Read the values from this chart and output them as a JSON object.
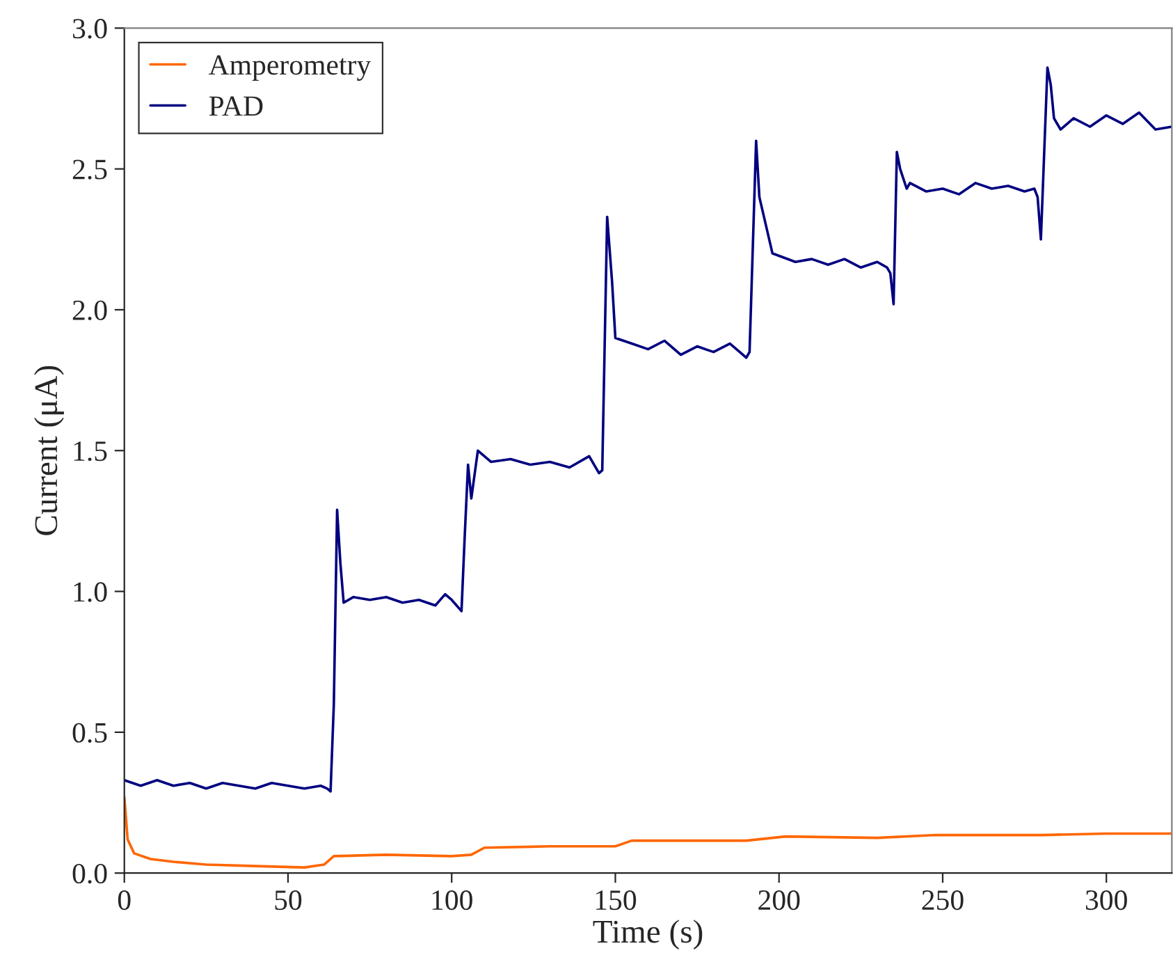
{
  "chart_data": {
    "type": "line",
    "xlabel": "Time (s)",
    "ylabel": "Current (μA)",
    "xlim": [
      0,
      320
    ],
    "xticks": [
      0,
      50,
      100,
      150,
      200,
      250,
      300
    ],
    "ylim": [
      0,
      3.0
    ],
    "yticks": [
      {
        "value": 0,
        "label": "0.0"
      },
      {
        "value": 0.5,
        "label": "0.5"
      },
      {
        "value": 1.0,
        "label": "1.0"
      },
      {
        "value": 1.5,
        "label": "1.5"
      },
      {
        "value": 2.0,
        "label": "2.0"
      },
      {
        "value": 2.5,
        "label": "2.5"
      },
      {
        "value": 3.0,
        "label": "3.0"
      }
    ],
    "grid": false,
    "legend": "top left",
    "marker": "none",
    "line_style": "solid",
    "series": [
      {
        "name": "Amperometry",
        "color": "#ff6600",
        "x": [
          0,
          1,
          3,
          8,
          15,
          25,
          40,
          55,
          61,
          64,
          80,
          100,
          106,
          110,
          130,
          150,
          155,
          190,
          202,
          230,
          248,
          280,
          300,
          320
        ],
        "values": [
          0.27,
          0.12,
          0.07,
          0.05,
          0.04,
          0.03,
          0.025,
          0.02,
          0.03,
          0.06,
          0.065,
          0.06,
          0.065,
          0.09,
          0.095,
          0.095,
          0.115,
          0.115,
          0.13,
          0.125,
          0.135,
          0.135,
          0.14,
          0.14
        ]
      },
      {
        "name": "PAD",
        "color": "#000080",
        "x": [
          0,
          5,
          10,
          15,
          20,
          25,
          30,
          35,
          40,
          45,
          50,
          55,
          60,
          62,
          63,
          64,
          65,
          66,
          67,
          70,
          75,
          80,
          85,
          90,
          95,
          98,
          100,
          103,
          104,
          105,
          106,
          108,
          112,
          118,
          124,
          130,
          136,
          142,
          145,
          146,
          147.5,
          149,
          150,
          155,
          160,
          165,
          170,
          175,
          180,
          185,
          190,
          191,
          193,
          194,
          195,
          198,
          205,
          210,
          215,
          220,
          225,
          230,
          233,
          234,
          235,
          236,
          237,
          239,
          240,
          245,
          250,
          255,
          260,
          265,
          270,
          275,
          278,
          279,
          280,
          282,
          283,
          284,
          286,
          290,
          295,
          300,
          305,
          310,
          315,
          320
        ],
        "values": [
          0.33,
          0.31,
          0.33,
          0.31,
          0.32,
          0.3,
          0.32,
          0.31,
          0.3,
          0.32,
          0.31,
          0.3,
          0.31,
          0.3,
          0.29,
          0.6,
          1.29,
          1.1,
          0.96,
          0.98,
          0.97,
          0.98,
          0.96,
          0.97,
          0.95,
          0.99,
          0.97,
          0.93,
          1.2,
          1.45,
          1.33,
          1.5,
          1.46,
          1.47,
          1.45,
          1.46,
          1.44,
          1.48,
          1.42,
          1.43,
          2.33,
          2.1,
          1.9,
          1.88,
          1.86,
          1.89,
          1.84,
          1.87,
          1.85,
          1.88,
          1.83,
          1.85,
          2.6,
          2.4,
          2.35,
          2.2,
          2.17,
          2.18,
          2.16,
          2.18,
          2.15,
          2.17,
          2.15,
          2.13,
          2.02,
          2.56,
          2.5,
          2.43,
          2.45,
          2.42,
          2.43,
          2.41,
          2.45,
          2.43,
          2.44,
          2.42,
          2.43,
          2.4,
          2.25,
          2.86,
          2.8,
          2.68,
          2.64,
          2.68,
          2.65,
          2.69,
          2.66,
          2.7,
          2.64,
          2.65
        ]
      }
    ]
  }
}
